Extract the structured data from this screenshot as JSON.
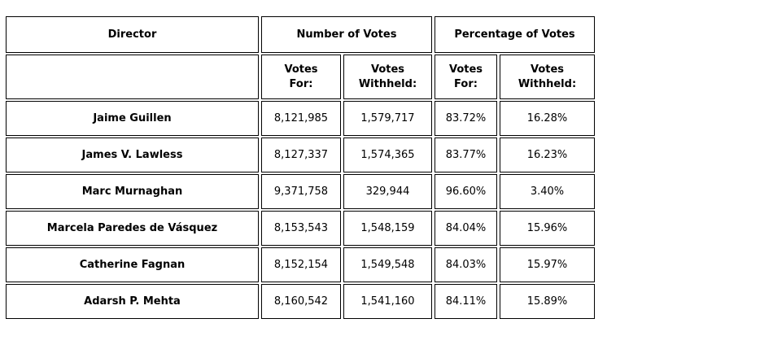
{
  "table": {
    "header": {
      "director": "Director",
      "number_of_votes": "Number of Votes",
      "percentage_of_votes": "Percentage of Votes",
      "votes_for": "Votes\nFor:",
      "votes_withheld": "Votes\nWithheld:"
    },
    "rows": [
      {
        "director": "Jaime Guillen",
        "votes_for": "8,121,985",
        "votes_withheld": "1,579,717",
        "pct_for": "83.72%",
        "pct_withheld": "16.28%"
      },
      {
        "director": "James V. Lawless",
        "votes_for": "8,127,337",
        "votes_withheld": "1,574,365",
        "pct_for": "83.77%",
        "pct_withheld": "16.23%"
      },
      {
        "director": "Marc Murnaghan",
        "votes_for": "9,371,758",
        "votes_withheld": "329,944",
        "pct_for": "96.60%",
        "pct_withheld": "3.40%"
      },
      {
        "director": "Marcela Paredes de Vásquez",
        "votes_for": "8,153,543",
        "votes_withheld": "1,548,159",
        "pct_for": "84.04%",
        "pct_withheld": "15.96%"
      },
      {
        "director": "Catherine Fagnan",
        "votes_for": "8,152,154",
        "votes_withheld": "1,549,548",
        "pct_for": "84.03%",
        "pct_withheld": "15.97%"
      },
      {
        "director": "Adarsh P. Mehta",
        "votes_for": "8,160,542",
        "votes_withheld": "1,541,160",
        "pct_for": "84.11%",
        "pct_withheld": "15.89%"
      }
    ]
  }
}
